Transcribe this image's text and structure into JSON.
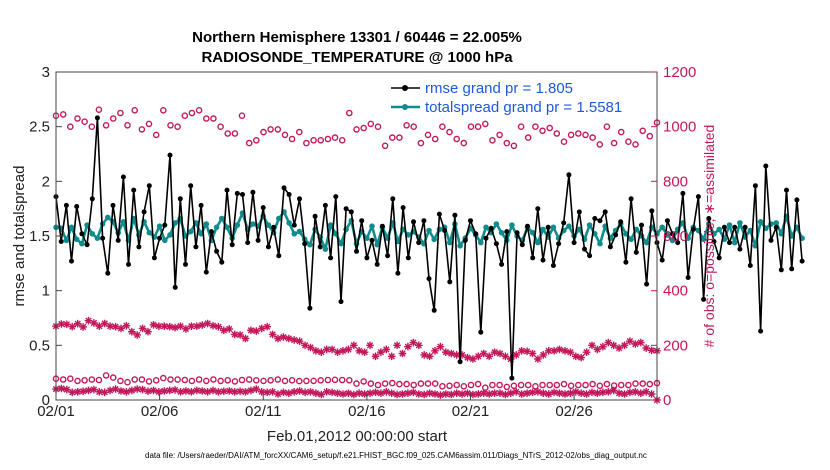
{
  "chart_data": {
    "type": "line",
    "title": "Northern Hemisphere 13301 / 60446 = 22.005%",
    "subtitle": "RADIOSONDE_TEMPERATURE @ 1000 hPa",
    "xlabel": "Feb.01,2012 00:00:00 start",
    "ylabel": "rmse and totalspread",
    "y2label": "# of obs: o=possible; ∗=assimilated",
    "xticks": [
      "02/01",
      "02/06",
      "02/11",
      "02/16",
      "02/21",
      "02/26"
    ],
    "xlim": [
      0,
      29
    ],
    "ylim": [
      0,
      3
    ],
    "yticks": [
      "0",
      "0.5",
      "1",
      "1.5",
      "2",
      "2.5",
      "3"
    ],
    "y2lim": [
      0,
      1200
    ],
    "y2ticks": [
      "0",
      "200",
      "400",
      "600",
      "800",
      "1000",
      "1200"
    ],
    "x_step_days": 0.25,
    "footer": "data file: /Users/raeder/DAI/ATM_forcXX/CAM6_setup/f.e21.FHIST_BGC.f09_025.CAM6assim.011/Diags_NTrS_2012-02/obs_diag_output.nc",
    "legend_position": "top-right",
    "series": [
      {
        "name": "rmse grand pr = 1.805",
        "color": "#000000",
        "values": [
          1.86,
          1.45,
          1.78,
          1.27,
          1.77,
          1.52,
          1.42,
          1.84,
          2.58,
          1.48,
          1.16,
          1.78,
          1.46,
          2.04,
          1.24,
          1.92,
          1.4,
          1.72,
          1.96,
          1.3,
          1.48,
          1.6,
          2.24,
          1.03,
          1.84,
          1.24,
          1.96,
          1.4,
          1.78,
          1.17,
          1.54,
          1.36,
          1.26,
          1.92,
          1.42,
          1.89,
          1.88,
          1.44,
          1.9,
          1.46,
          1.76,
          1.4,
          1.58,
          1.32,
          1.94,
          1.88,
          1.6,
          1.84,
          1.43,
          0.84,
          1.68,
          1.4,
          1.78,
          1.3,
          1.86,
          0.9,
          1.75,
          1.72,
          1.36,
          1.64,
          1.3,
          1.46,
          1.24,
          1.59,
          1.32,
          1.84,
          1.16,
          1.76,
          1.3,
          1.63,
          1.44,
          1.64,
          1.11,
          0.82,
          1.7,
          1.55,
          1.08,
          1.69,
          0.35,
          1.46,
          1.64,
          1.52,
          0.62,
          1.48,
          1.57,
          1.43,
          1.24,
          1.54,
          0.2,
          1.53,
          1.42,
          1.59,
          1.3,
          1.75,
          1.28,
          1.58,
          1.23,
          1.43,
          1.62,
          2.06,
          1.44,
          1.72,
          1.38,
          1.32,
          1.66,
          1.64,
          1.72,
          1.4,
          1.51,
          1.63,
          1.26,
          1.84,
          1.35,
          1.6,
          1.06,
          1.73,
          1.44,
          1.28,
          1.64,
          1.52,
          1.44,
          1.89,
          1.12,
          1.56,
          1.86,
          0.92,
          1.66,
          1.45,
          1.3,
          1.58,
          1.44,
          1.58,
          1.38,
          1.58,
          1.23,
          1.96,
          0.63,
          2.14,
          1.46,
          1.58,
          1.19,
          1.92,
          1.2,
          1.83,
          1.27
        ]
      },
      {
        "name": "totalspread grand pr = 1.5581",
        "color": "#118c8c",
        "values": [
          1.58,
          1.57,
          1.46,
          1.58,
          1.47,
          1.43,
          1.6,
          1.52,
          1.48,
          1.61,
          1.67,
          1.63,
          1.53,
          1.63,
          1.46,
          1.66,
          1.51,
          1.63,
          1.53,
          1.49,
          1.59,
          1.46,
          1.51,
          1.62,
          1.66,
          1.5,
          1.54,
          1.62,
          1.52,
          1.61,
          1.46,
          1.58,
          1.66,
          1.58,
          1.48,
          1.6,
          1.71,
          1.56,
          1.61,
          1.59,
          1.68,
          1.6,
          1.53,
          1.66,
          1.72,
          1.62,
          1.52,
          1.54,
          1.47,
          1.42,
          1.56,
          1.49,
          1.38,
          1.6,
          1.52,
          1.43,
          1.56,
          1.64,
          1.43,
          1.54,
          1.48,
          1.59,
          1.42,
          1.58,
          1.48,
          1.62,
          1.45,
          1.56,
          1.51,
          1.54,
          1.49,
          1.43,
          1.55,
          1.47,
          1.56,
          1.58,
          1.44,
          1.61,
          1.41,
          1.48,
          1.57,
          1.51,
          1.44,
          1.58,
          1.53,
          1.61,
          1.53,
          1.46,
          1.6,
          1.5,
          1.46,
          1.58,
          1.53,
          1.44,
          1.56,
          1.49,
          1.58,
          1.48,
          1.55,
          1.59,
          1.5,
          1.56,
          1.47,
          1.6,
          1.52,
          1.43,
          1.59,
          1.48,
          1.55,
          1.61,
          1.52,
          1.47,
          1.56,
          1.5,
          1.44,
          1.58,
          1.52,
          1.58,
          1.51,
          1.46,
          1.56,
          1.62,
          1.48,
          1.58,
          1.55,
          1.47,
          1.61,
          1.52,
          1.56,
          1.47,
          1.6,
          1.44,
          1.62,
          1.49,
          1.55,
          1.41,
          1.63,
          1.57,
          1.61,
          1.62,
          1.52,
          1.68,
          1.5,
          1.58,
          1.48
        ]
      },
      {
        "name": "possible (upper)",
        "color": "#c2185b",
        "values": [
          1040,
          1045,
          1000,
          1030,
          1018,
          1000,
          1062,
          1005,
          1030,
          1050,
          1005,
          1060,
          990,
          1010,
          970,
          1060,
          1005,
          1000,
          1040,
          1050,
          1060,
          1030,
          1030,
          1000,
          975,
          975,
          1040,
          940,
          950,
          980,
          990,
          990,
          970,
          955,
          980,
          940,
          950,
          950,
          955,
          960,
          950,
          1050,
          990,
          995,
          1010,
          1000,
          930,
          960,
          960,
          1005,
          1000,
          940,
          970,
          955,
          1000,
          980,
          955,
          940,
          1000,
          1000,
          1010,
          950,
          970,
          940,
          930,
          1000,
          960,
          1000,
          985,
          995,
          975,
          945,
          970,
          975,
          970,
          960,
          935,
          1000,
          940,
          980,
          945,
          935,
          985,
          965,
          1015
        ]
      },
      {
        "name": "possible (lower)",
        "color": "#c2185b",
        "values": [
          78,
          75,
          78,
          70,
          72,
          75,
          73,
          90,
          82,
          70,
          65,
          75,
          75,
          68,
          72,
          80,
          75,
          75,
          73,
          70,
          75,
          70,
          75,
          70,
          72,
          68,
          73,
          75,
          72,
          70,
          72,
          75,
          70,
          72,
          69,
          70,
          70,
          72,
          73,
          74,
          73,
          72,
          60,
          68,
          60,
          55,
          60,
          62,
          58,
          58,
          55,
          60,
          60,
          60,
          50,
          52,
          55,
          50,
          55,
          58,
          45,
          55,
          55,
          48,
          52,
          55,
          55,
          50,
          55,
          55,
          55,
          58,
          52,
          55,
          55,
          58,
          52,
          58,
          53,
          55,
          55,
          60,
          60,
          58,
          62
        ]
      },
      {
        "name": "assimilated (upper)",
        "color": "#c2185b",
        "values": [
          270,
          278,
          277,
          268,
          279,
          267,
          290,
          282,
          270,
          280,
          270,
          268,
          262,
          272,
          250,
          238,
          262,
          250,
          275,
          270,
          270,
          268,
          265,
          270,
          260,
          270,
          270,
          274,
          280,
          272,
          268,
          255,
          260,
          240,
          238,
          225,
          255,
          252,
          262,
          268,
          240,
          225,
          230,
          225,
          220,
          215,
          200,
          192,
          180,
          175,
          185,
          185,
          175,
          180,
          185,
          200,
          180,
          175,
          200,
          160,
          175,
          185,
          160,
          200,
          170,
          195,
          210,
          200,
          165,
          160,
          180,
          195,
          175,
          170,
          165,
          165,
          155,
          150,
          160,
          170,
          160,
          175,
          170,
          160,
          150,
          165,
          180,
          178,
          170,
          150,
          165,
          180,
          180,
          185,
          180,
          175,
          160,
          155,
          175,
          200,
          185,
          195,
          210,
          200,
          190,
          200,
          215,
          205,
          210,
          190,
          182,
          180
        ]
      },
      {
        "name": "assimilated (lower)",
        "color": "#c2185b",
        "values": [
          40,
          42,
          38,
          28,
          30,
          32,
          35,
          38,
          30,
          28,
          35,
          40,
          33,
          30,
          35,
          40,
          38,
          32,
          35,
          30,
          33,
          35,
          37,
          30,
          33,
          30,
          35,
          33,
          30,
          35,
          30,
          32,
          33,
          30,
          32,
          30,
          35,
          40,
          30,
          28,
          30,
          22,
          28,
          25,
          30,
          33,
          28,
          30,
          25,
          20,
          30,
          28,
          25,
          22,
          25,
          20,
          25,
          22,
          25,
          28,
          25,
          30,
          25,
          20,
          22,
          25,
          28,
          22,
          20,
          25,
          22,
          18,
          22,
          20,
          25,
          22,
          25,
          20,
          22,
          25,
          22,
          25,
          25,
          20,
          25,
          30,
          22,
          25,
          28,
          30,
          25,
          22,
          28,
          25,
          22,
          25,
          30,
          25,
          22,
          28,
          25,
          28,
          30,
          35,
          25,
          22,
          28,
          30,
          25,
          30,
          22,
          0
        ]
      }
    ]
  }
}
